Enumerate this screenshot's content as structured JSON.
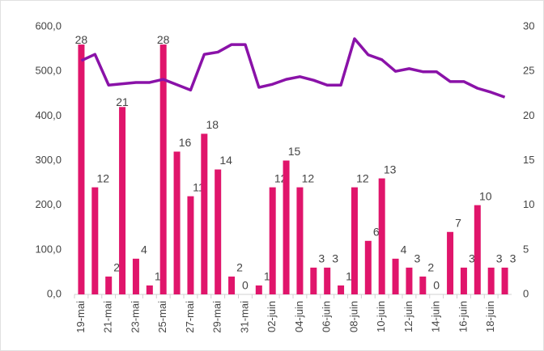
{
  "chart_data": {
    "type": "bar-line",
    "categories": [
      "19-mai",
      null,
      "21-mai",
      null,
      "23-mai",
      null,
      "25-mai",
      null,
      "27-mai",
      null,
      "29-mai",
      null,
      "31-mai",
      null,
      "02-juin",
      null,
      "04-juin",
      null,
      "06-juin",
      null,
      "08-juin",
      null,
      "10-juin",
      null,
      "12-juin",
      null,
      "14-juin",
      null,
      "16-juin",
      null,
      "18-juin",
      null
    ],
    "series": [
      {
        "type": "bar",
        "axis": "y2",
        "color": "#e0156b",
        "values": [
          28,
          12,
          2,
          21,
          4,
          1,
          28,
          16,
          11,
          18,
          14,
          2,
          0,
          1,
          12,
          15,
          12,
          3,
          3,
          1,
          12,
          6,
          13,
          4,
          3,
          2,
          0,
          7,
          3,
          10,
          3,
          3
        ]
      },
      {
        "type": "line",
        "axis": "y",
        "color": "#8a12a8",
        "values": [
          524,
          538,
          469,
          472,
          475,
          475,
          482,
          470,
          458,
          538,
          543,
          560,
          560,
          464,
          471,
          482,
          488,
          480,
          469,
          469,
          573,
          537,
          526,
          500,
          506,
          499,
          499,
          477,
          477,
          462,
          453,
          442
        ]
      }
    ],
    "ylim": [
      0,
      600
    ],
    "yticks": [
      {
        "value": 0,
        "label": "0,0"
      },
      {
        "value": 100,
        "label": "100,0"
      },
      {
        "value": 200,
        "label": "200,0"
      },
      {
        "value": 300,
        "label": "300,0"
      },
      {
        "value": 400,
        "label": "400,0"
      },
      {
        "value": 500,
        "label": "500,0"
      },
      {
        "value": 600,
        "label": "600,0"
      }
    ],
    "y2lim": [
      0,
      30
    ],
    "y2ticks": [
      0,
      5,
      10,
      15,
      20,
      25,
      30
    ]
  }
}
